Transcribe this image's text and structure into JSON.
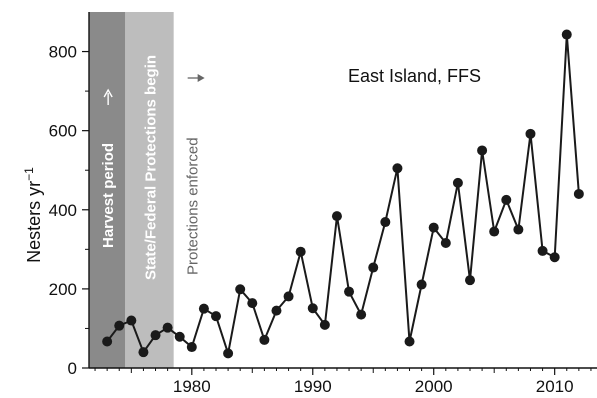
{
  "chart_data": {
    "type": "line",
    "annotation_title": "East Island, FFS",
    "ylabel": "Nesters yr",
    "ylabel_sup": "−1",
    "xlabel": "",
    "xlim": [
      1971.5,
      2013.5
    ],
    "ylim": [
      0,
      900
    ],
    "x_ticks": [
      1980,
      1990,
      2000,
      2010
    ],
    "y_ticks": [
      0,
      200,
      400,
      600,
      800
    ],
    "grid": false,
    "marker": "circle",
    "colors": {
      "line": "#1a1a1a",
      "marker": "#1a1a1a",
      "harvest_band": "#8a8a8a",
      "protection_band": "#bdbdbd",
      "enforced_text": "#666666"
    },
    "periods": [
      {
        "label": "Harvest period",
        "start": 1971.5,
        "end": 1974.5,
        "arrow": "up"
      },
      {
        "label": "State/Federal Protections begin",
        "start": 1974.5,
        "end": 1978.5
      },
      {
        "label": "Protections enforced",
        "start": 1978.5,
        "arrow": "right"
      }
    ],
    "x": [
      1973,
      1974,
      1975,
      1976,
      1977,
      1978,
      1979,
      1980,
      1981,
      1982,
      1983,
      1984,
      1985,
      1986,
      1987,
      1988,
      1989,
      1990,
      1991,
      1992,
      1993,
      1994,
      1995,
      1996,
      1997,
      1998,
      1999,
      2000,
      2001,
      2002,
      2003,
      2004,
      2005,
      2006,
      2007,
      2008,
      2009,
      2010,
      2011,
      2012
    ],
    "values": [
      67,
      107,
      120,
      40,
      83,
      102,
      79,
      53,
      150,
      131,
      37,
      199,
      164,
      71,
      145,
      181,
      294,
      151,
      109,
      384,
      193,
      135,
      254,
      369,
      505,
      67,
      211,
      355,
      316,
      468,
      222,
      550,
      345,
      425,
      350,
      592,
      296,
      280,
      843,
      440
    ]
  }
}
